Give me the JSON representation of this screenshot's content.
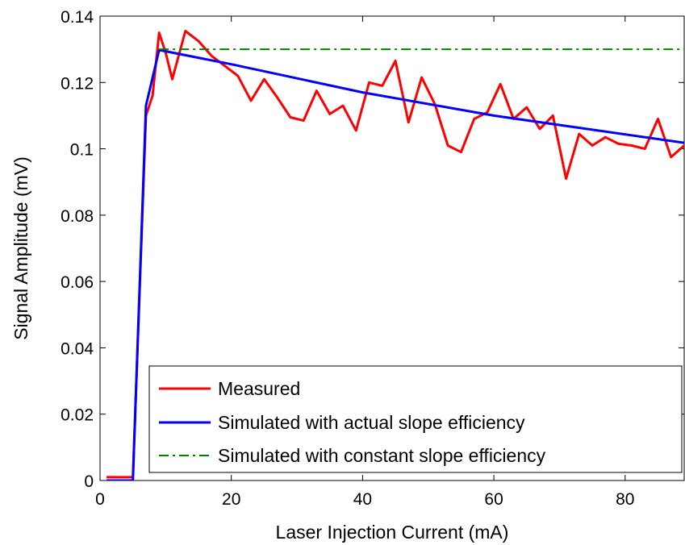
{
  "chart_data": {
    "type": "line",
    "title": "",
    "xlabel": "Laser Injection Current (mA)",
    "ylabel": "Signal Amplitude (mV)",
    "xlim": [
      0,
      89
    ],
    "ylim": [
      0,
      0.14
    ],
    "xticks": [
      0,
      20,
      40,
      60,
      80
    ],
    "xtick_labels": [
      "0",
      "20",
      "40",
      "60",
      "80"
    ],
    "yticks": [
      0,
      0.02,
      0.04,
      0.06,
      0.08,
      0.1,
      0.12,
      0.14
    ],
    "ytick_labels": [
      "0",
      "0.02",
      "0.04",
      "0.06",
      "0.08",
      "0.1",
      "0.12",
      "0.14"
    ],
    "grid": false,
    "legend_position": "bottom-right",
    "series": [
      {
        "name": "Measured",
        "color": "#ff0000",
        "line_style": "solid",
        "x": [
          1,
          5,
          7,
          8,
          9,
          10,
          11,
          13,
          15,
          17,
          19,
          21,
          23,
          25,
          27,
          29,
          31,
          33,
          35,
          37,
          39,
          41,
          43,
          45,
          47,
          49,
          51,
          53,
          55,
          57,
          59,
          61,
          63,
          65,
          67,
          69,
          71,
          73,
          75,
          77,
          79,
          81,
          83,
          85,
          87,
          89
        ],
        "y": [
          0.001,
          0.001,
          0.11,
          0.116,
          0.135,
          0.129,
          0.121,
          0.1355,
          0.1325,
          0.128,
          0.125,
          0.122,
          0.1145,
          0.121,
          0.1155,
          0.1095,
          0.1085,
          0.1175,
          0.1105,
          0.113,
          0.1055,
          0.12,
          0.119,
          0.1265,
          0.108,
          0.1215,
          0.1135,
          0.101,
          0.099,
          0.109,
          0.111,
          0.1195,
          0.109,
          0.1125,
          0.106,
          0.11,
          0.091,
          0.1045,
          0.101,
          0.1035,
          0.1015,
          0.101,
          0.1,
          0.109,
          0.0975,
          0.101
        ]
      },
      {
        "name": "Simulated with actual slope efficiency",
        "color": "#0000ff",
        "line_style": "solid",
        "x": [
          1,
          5,
          7,
          9,
          20,
          40,
          60,
          89
        ],
        "y": [
          0.0,
          0.0,
          0.113,
          0.1298,
          0.1255,
          0.117,
          0.11,
          0.1018
        ]
      },
      {
        "name": "Simulated with constant slope efficiency",
        "color": "#008000",
        "line_style": "dashdot",
        "x": [
          9,
          89
        ],
        "y": [
          0.13,
          0.13
        ]
      }
    ]
  }
}
